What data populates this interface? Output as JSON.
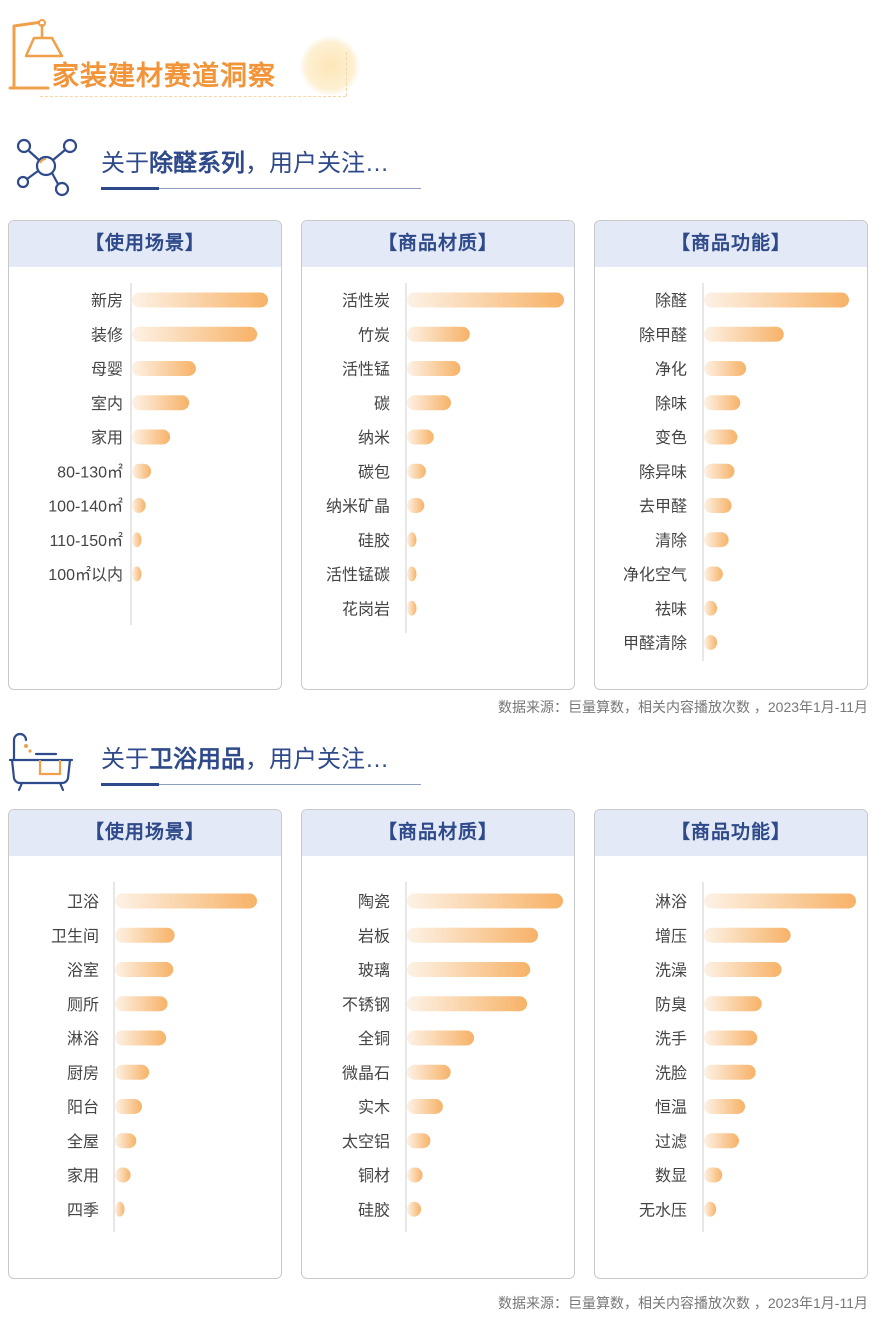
{
  "page_title": "家装建材赛道洞察",
  "section1": {
    "heading_pre": "关于",
    "heading_bold": "除醛系列",
    "heading_post": "，用户关注…"
  },
  "section2": {
    "heading_pre": "关于",
    "heading_bold": "卫浴用品",
    "heading_post": "，用户关注…"
  },
  "source_note": "数据来源：巨量算数，相关内容播放次数 ，2023年1月-11月",
  "icons": {
    "page_title": "desk-lamp-icon",
    "section1": "molecule-icon",
    "section2": "bathtub-icon"
  },
  "colors": {
    "bar_start": "#fdf2e6",
    "bar_end": "#f7b267",
    "heading": "#2f4a8a",
    "title": "#f2953a",
    "panel_header_bg": "#e3e9f6"
  },
  "chart_data": [
    {
      "type": "bar",
      "orientation": "horizontal",
      "title": "【使用场景】",
      "categories": [
        "新房",
        "装修",
        "母婴",
        "室内",
        "家用",
        "80-130㎡",
        "100-140㎡",
        "110-150㎡",
        "100㎡以内"
      ],
      "values": [
        100,
        92,
        47,
        42,
        28,
        14,
        10,
        6,
        4
      ],
      "xlim": [
        0,
        100
      ],
      "grid": false
    },
    {
      "type": "bar",
      "orientation": "horizontal",
      "title": "【商品材质】",
      "categories": [
        "活性炭",
        "竹炭",
        "活性锰",
        "碳",
        "纳米",
        "碳包",
        "纳米矿晶",
        "硅胶",
        "活性锰碳",
        "花岗岩"
      ],
      "values": [
        100,
        40,
        34,
        28,
        17,
        12,
        11,
        5,
        4,
        2
      ],
      "xlim": [
        0,
        100
      ],
      "grid": false
    },
    {
      "type": "bar",
      "orientation": "horizontal",
      "title": "【商品功能】",
      "categories": [
        "除醛",
        "除甲醛",
        "净化",
        "除味",
        "变色",
        "除异味",
        "去甲醛",
        "清除",
        "净化空气",
        "祛味",
        "甲醛清除"
      ],
      "values": [
        100,
        55,
        29,
        25,
        23,
        21,
        19,
        17,
        13,
        9,
        9
      ],
      "xlim": [
        0,
        100
      ],
      "grid": false
    },
    {
      "type": "bar",
      "orientation": "horizontal",
      "title": "【使用场景】",
      "categories": [
        "卫浴",
        "卫生间",
        "浴室",
        "厕所",
        "淋浴",
        "厨房",
        "阳台",
        "全屋",
        "家用",
        "四季"
      ],
      "values": [
        100,
        42,
        41,
        37,
        36,
        24,
        19,
        15,
        11,
        6
      ],
      "xlim": [
        0,
        100
      ],
      "grid": false
    },
    {
      "type": "bar",
      "orientation": "horizontal",
      "title": "【商品材质】",
      "categories": [
        "陶瓷",
        "岩板",
        "玻璃",
        "不锈钢",
        "全铜",
        "微晶石",
        "实木",
        "太空铝",
        "铜材",
        "硅胶"
      ],
      "values": [
        100,
        84,
        79,
        77,
        43,
        28,
        23,
        15,
        10,
        9
      ],
      "xlim": [
        0,
        100
      ],
      "grid": false
    },
    {
      "type": "bar",
      "orientation": "horizontal",
      "title": "【商品功能】",
      "categories": [
        "淋浴",
        "增压",
        "洗澡",
        "防臭",
        "洗手",
        "洗脸",
        "恒温",
        "过滤",
        "数显",
        "无水压"
      ],
      "values": [
        100,
        57,
        51,
        38,
        35,
        34,
        27,
        23,
        12,
        8
      ],
      "xlim": [
        0,
        100
      ],
      "grid": false
    }
  ]
}
